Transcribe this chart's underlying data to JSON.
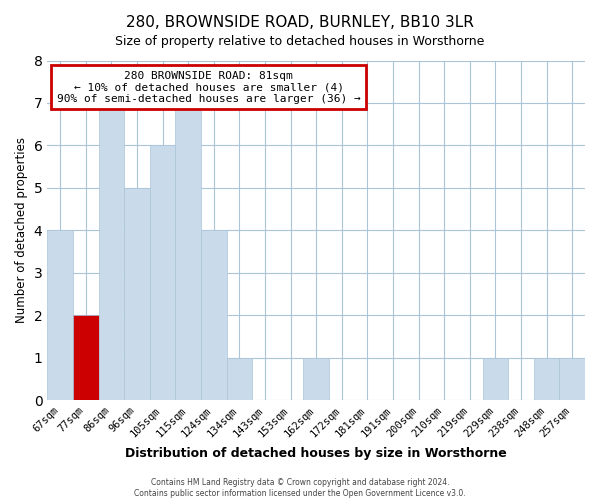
{
  "title": "280, BROWNSIDE ROAD, BURNLEY, BB10 3LR",
  "subtitle": "Size of property relative to detached houses in Worsthorne",
  "xlabel": "Distribution of detached houses by size in Worsthorne",
  "ylabel": "Number of detached properties",
  "categories": [
    "67sqm",
    "77sqm",
    "86sqm",
    "96sqm",
    "105sqm",
    "115sqm",
    "124sqm",
    "134sqm",
    "143sqm",
    "153sqm",
    "162sqm",
    "172sqm",
    "181sqm",
    "191sqm",
    "200sqm",
    "210sqm",
    "219sqm",
    "229sqm",
    "238sqm",
    "248sqm",
    "257sqm"
  ],
  "values": [
    4,
    2,
    7,
    5,
    6,
    7,
    4,
    1,
    0,
    0,
    1,
    0,
    0,
    0,
    0,
    0,
    0,
    1,
    0,
    1,
    1
  ],
  "bar_color": "#c9daea",
  "highlight_bar_index": 1,
  "highlight_bar_color": "#cc0000",
  "ylim": [
    0,
    8
  ],
  "yticks": [
    0,
    1,
    2,
    3,
    4,
    5,
    6,
    7,
    8
  ],
  "annotation_title": "280 BROWNSIDE ROAD: 81sqm",
  "annotation_line1": "← 10% of detached houses are smaller (4)",
  "annotation_line2": "90% of semi-detached houses are larger (36) →",
  "annotation_box_facecolor": "#ffffff",
  "annotation_box_edgecolor": "#cc0000",
  "grid_color": "#aac4d8",
  "background_color": "#ffffff",
  "footer_line1": "Contains HM Land Registry data © Crown copyright and database right 2024.",
  "footer_line2": "Contains public sector information licensed under the Open Government Licence v3.0."
}
